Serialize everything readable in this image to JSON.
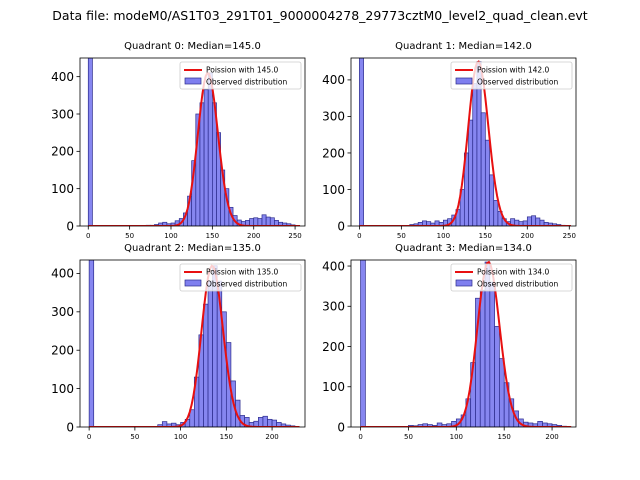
{
  "figure": {
    "suptitle": "Data file: modeM0/AS1T03_291T01_9000004278_29773cztM0_level2_quad_clean.evt"
  },
  "colors": {
    "bar_fill": "#7f7fef",
    "bar_edge": "#2b2b8c",
    "poisson_line": "#e81010",
    "axis": "#000000"
  },
  "legend_labels": {
    "observed": "Observed distribution"
  },
  "chart_data": [
    {
      "type": "bar",
      "title": "Quadrant 0: Median=145.0",
      "poisson_label": "Poission with 145.0",
      "median": 145,
      "xlim": [
        -10,
        262
      ],
      "ylim": [
        0,
        450
      ],
      "xticks": [
        0,
        50,
        100,
        150,
        200,
        250
      ],
      "yticks": [
        0,
        100,
        200,
        300,
        400
      ],
      "bin_width": 5,
      "bins_x": [
        0,
        70,
        75,
        80,
        85,
        90,
        95,
        100,
        105,
        110,
        115,
        120,
        125,
        130,
        135,
        140,
        145,
        150,
        155,
        160,
        165,
        170,
        175,
        180,
        185,
        190,
        195,
        200,
        205,
        210,
        215,
        220,
        225,
        230,
        235,
        240,
        245
      ],
      "bins_y": [
        450,
        2,
        2,
        4,
        8,
        10,
        6,
        8,
        14,
        20,
        35,
        80,
        175,
        300,
        330,
        365,
        410,
        330,
        250,
        150,
        100,
        50,
        28,
        16,
        12,
        15,
        20,
        22,
        20,
        30,
        24,
        22,
        15,
        10,
        8,
        6,
        3
      ]
    },
    {
      "type": "bar",
      "title": "Quadrant 1: Median=142.0",
      "poisson_label": "Poission with 142.0",
      "median": 142,
      "xlim": [
        -10,
        258
      ],
      "ylim": [
        0,
        460
      ],
      "xticks": [
        0,
        50,
        100,
        150,
        200,
        250
      ],
      "yticks": [
        0,
        100,
        200,
        300,
        400
      ],
      "bin_width": 5,
      "bins_x": [
        0,
        60,
        65,
        70,
        75,
        80,
        85,
        90,
        95,
        100,
        105,
        110,
        115,
        120,
        125,
        130,
        135,
        140,
        145,
        150,
        155,
        160,
        165,
        170,
        175,
        180,
        185,
        190,
        195,
        200,
        205,
        210,
        215,
        220,
        225,
        230,
        235,
        240
      ],
      "bins_y": [
        460,
        4,
        6,
        10,
        14,
        12,
        8,
        14,
        10,
        16,
        20,
        30,
        45,
        100,
        200,
        290,
        390,
        450,
        310,
        235,
        140,
        70,
        40,
        20,
        12,
        20,
        16,
        12,
        14,
        25,
        28,
        22,
        16,
        10,
        8,
        6,
        4,
        2
      ]
    },
    {
      "type": "bar",
      "title": "Quadrant 2: Median=135.0",
      "poisson_label": "Poission with 135.0",
      "median": 135,
      "xlim": [
        -10,
        236
      ],
      "ylim": [
        0,
        435
      ],
      "xticks": [
        0,
        50,
        100,
        150,
        200
      ],
      "yticks": [
        0,
        100,
        200,
        300,
        400
      ],
      "bin_width": 5,
      "bins_x": [
        0,
        75,
        80,
        85,
        90,
        95,
        100,
        105,
        110,
        115,
        120,
        125,
        130,
        135,
        140,
        145,
        150,
        155,
        160,
        165,
        170,
        175,
        180,
        185,
        190,
        195,
        200,
        205,
        210,
        215,
        220
      ],
      "bins_y": [
        435,
        6,
        14,
        8,
        10,
        6,
        12,
        20,
        45,
        130,
        240,
        320,
        380,
        420,
        380,
        300,
        220,
        120,
        70,
        30,
        25,
        12,
        15,
        25,
        28,
        20,
        18,
        12,
        8,
        5,
        3
      ]
    },
    {
      "type": "bar",
      "title": "Quadrant 3: Median=134.0",
      "poisson_label": "Poission with 134.0",
      "median": 134,
      "xlim": [
        -10,
        225
      ],
      "ylim": [
        0,
        415
      ],
      "xticks": [
        0,
        50,
        100,
        150,
        200
      ],
      "yticks": [
        0,
        100,
        200,
        300,
        400
      ],
      "bin_width": 5,
      "bins_x": [
        0,
        50,
        55,
        60,
        65,
        70,
        75,
        80,
        85,
        90,
        95,
        100,
        105,
        110,
        115,
        120,
        125,
        130,
        135,
        140,
        145,
        150,
        155,
        160,
        165,
        170,
        175,
        180,
        185,
        190,
        195,
        200,
        205,
        210
      ],
      "bins_y": [
        415,
        4,
        3,
        6,
        8,
        6,
        4,
        10,
        6,
        8,
        14,
        20,
        30,
        70,
        160,
        320,
        340,
        410,
        360,
        250,
        170,
        110,
        70,
        40,
        20,
        12,
        10,
        8,
        14,
        10,
        8,
        6,
        4,
        2
      ]
    }
  ]
}
